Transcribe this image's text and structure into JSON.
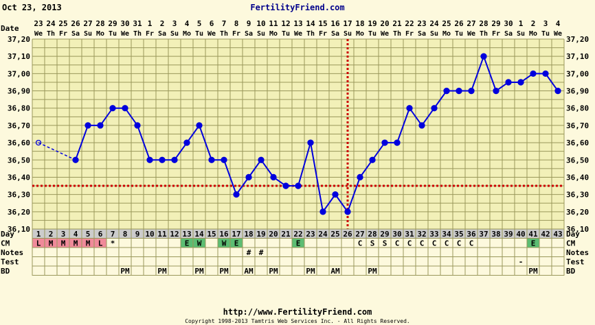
{
  "header": {
    "date_text": "Oct 23, 2013",
    "site_title": "FertilityFriend.com"
  },
  "footer": {
    "url": "http://www.FertilityFriend.com",
    "copyright": "Copyright 1998-2013 Tamtris Web Services Inc. - All Rights Reserved."
  },
  "row_labels": {
    "date": "Date",
    "day": "Day",
    "cm": "CM",
    "notes": "Notes",
    "test": "Test",
    "bd": "BD"
  },
  "colors": {
    "background": "#fdf9dd",
    "plot_bg": "#f2f0b8",
    "grid": "#99975a",
    "line": "#0000dd",
    "coverline": "#cc0000",
    "day_row": "#cccccc",
    "cm_menses": "#f08a9a",
    "cm_fertile": "#5cbd73",
    "site_title": "#00008b"
  },
  "chart_data": {
    "type": "line",
    "ylim": [
      36.1,
      37.2
    ],
    "yticks": [
      "37,20",
      "37,10",
      "37,00",
      "36,90",
      "36,80",
      "36,70",
      "36,60",
      "36,50",
      "36,40",
      "36,30",
      "36,20",
      "36,10"
    ],
    "x_dates": [
      "23",
      "24",
      "25",
      "26",
      "27",
      "28",
      "29",
      "30",
      "31",
      "1",
      "2",
      "3",
      "4",
      "5",
      "6",
      "7",
      "8",
      "9",
      "10",
      "11",
      "12",
      "13",
      "14",
      "15",
      "16",
      "17",
      "18",
      "19",
      "20",
      "21",
      "22",
      "23",
      "24",
      "25",
      "26",
      "27",
      "28",
      "29",
      "30",
      "1",
      "2",
      "3",
      "4"
    ],
    "x_weekdays": [
      "We",
      "Th",
      "Fr",
      "Sa",
      "Su",
      "Mo",
      "Tu",
      "We",
      "Th",
      "Fr",
      "Sa",
      "Su",
      "Mo",
      "Tu",
      "We",
      "Th",
      "Fr",
      "Sa",
      "Su",
      "Mo",
      "Tu",
      "We",
      "Th",
      "Fr",
      "Sa",
      "Su",
      "Mo",
      "Tu",
      "We",
      "Th",
      "Fr",
      "Sa",
      "Su",
      "Mo",
      "Tu",
      "We",
      "Th",
      "Fr",
      "Sa",
      "Su",
      "Mo",
      "Tu",
      "We"
    ],
    "cycle_days": [
      1,
      2,
      3,
      4,
      5,
      6,
      7,
      8,
      9,
      10,
      11,
      12,
      13,
      14,
      15,
      16,
      17,
      18,
      19,
      20,
      21,
      22,
      23,
      24,
      25,
      26,
      27,
      28,
      29,
      30,
      31,
      32,
      33,
      34,
      35,
      36,
      37,
      38,
      39,
      40,
      41,
      42,
      43
    ],
    "temperatures": [
      36.6,
      null,
      null,
      36.5,
      36.7,
      36.7,
      36.8,
      36.8,
      36.7,
      36.5,
      36.5,
      36.5,
      36.6,
      36.7,
      36.5,
      36.5,
      36.3,
      36.4,
      36.5,
      36.4,
      36.35,
      36.35,
      36.6,
      36.2,
      36.3,
      36.2,
      36.4,
      36.5,
      36.6,
      36.6,
      36.8,
      36.7,
      36.8,
      36.9,
      36.9,
      36.9,
      37.1,
      36.9,
      36.95,
      36.95,
      37.0,
      37.0,
      36.9
    ],
    "open_points": [
      1
    ],
    "coverline": 36.35,
    "ovulation_day": 26,
    "cm": [
      "L",
      "M",
      "M",
      "M",
      "M",
      "L",
      "*",
      "",
      "",
      "",
      "",
      "",
      "E",
      "W",
      "",
      "W",
      "E",
      "",
      "",
      "",
      "",
      "E",
      "",
      "",
      "",
      "",
      "C",
      "S",
      "S",
      "C",
      "C",
      "C",
      "C",
      "C",
      "C",
      "C",
      "",
      "",
      "",
      "",
      "E",
      "",
      ""
    ],
    "cm_menses_days": [
      1,
      2,
      3,
      4,
      5,
      6
    ],
    "cm_fertile_days": [
      13,
      14,
      16,
      17,
      22,
      41
    ],
    "notes": [
      "",
      "",
      "",
      "",
      "",
      "",
      "",
      "",
      "",
      "",
      "",
      "",
      "",
      "",
      "",
      "",
      "",
      "#",
      "#",
      "",
      "",
      "",
      "",
      "",
      "",
      "",
      "",
      "",
      "",
      "",
      "",
      "",
      "",
      "",
      "",
      "",
      "",
      "",
      "",
      "",
      "",
      "",
      ""
    ],
    "test": [
      "",
      "",
      "",
      "",
      "",
      "",
      "",
      "",
      "",
      "",
      "",
      "",
      "",
      "",
      "",
      "",
      "",
      "",
      "",
      "",
      "",
      "",
      "",
      "",
      "",
      "",
      "",
      "",
      "",
      "",
      "",
      "",
      "",
      "",
      "",
      "",
      "",
      "",
      "",
      "-",
      "",
      "",
      ""
    ],
    "bd": [
      "",
      "",
      "",
      "",
      "",
      "",
      "",
      "PM",
      "",
      "",
      "PM",
      "",
      "",
      "PM",
      "",
      "PM",
      "",
      "AM",
      "",
      "PM",
      "",
      "",
      "PM",
      "",
      "AM",
      "",
      "",
      "PM",
      "",
      "",
      "",
      "",
      "",
      "",
      "",
      "",
      "",
      "",
      "",
      "",
      "PM",
      "",
      ""
    ]
  }
}
